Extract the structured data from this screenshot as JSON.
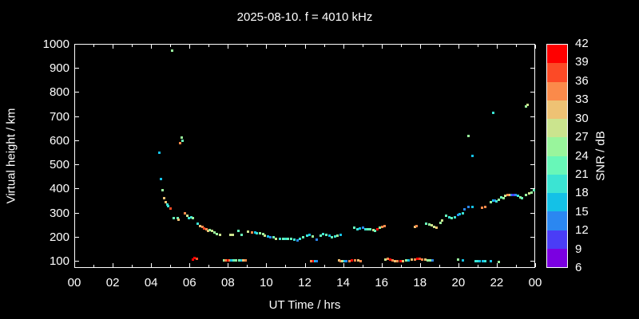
{
  "title": "2025-08-10. f = 4010 kHz",
  "x_axis": {
    "label": "UT Time / hrs",
    "major_tick_labels": [
      "00",
      "02",
      "04",
      "06",
      "08",
      "10",
      "12",
      "14",
      "16",
      "18",
      "20",
      "22",
      "00"
    ],
    "major_tick_hours": [
      0,
      2,
      4,
      6,
      8,
      10,
      12,
      14,
      16,
      18,
      20,
      22,
      24
    ],
    "minor_tick_hours": [
      1,
      3,
      5,
      7,
      9,
      11,
      13,
      15,
      17,
      19,
      21,
      23
    ]
  },
  "y_axis": {
    "label": "Virtual height / km",
    "tick_values": [
      100,
      200,
      300,
      400,
      500,
      600,
      700,
      800,
      900,
      1000
    ]
  },
  "colorbar": {
    "label": "SNR / dB",
    "tick_values": [
      6,
      9,
      12,
      15,
      18,
      21,
      24,
      27,
      30,
      33,
      36,
      39,
      42
    ],
    "colors": [
      "#7b00e1",
      "#4a3df6",
      "#2b87f1",
      "#14c1e7",
      "#3be4d3",
      "#68f7b8",
      "#99f59c",
      "#cbe48e",
      "#eec274",
      "#fb8a4a",
      "#fc4a26",
      "#ff0000"
    ]
  },
  "chart_data": {
    "type": "scatter",
    "title": "2025-08-10. f = 4010 kHz",
    "xlabel": "UT Time / hrs",
    "ylabel": "Virtual height / km",
    "xlim": [
      0,
      24
    ],
    "ylim": [
      70,
      1000
    ],
    "grid": false,
    "marker": "3px square, color-coded by SNR",
    "colorbar_label": "SNR / dB",
    "snr_range_db": [
      6,
      42
    ],
    "snr_step_db": 3,
    "points_format": [
      "ut_hour",
      "virtual_height_km",
      "snr_db"
    ],
    "points": [
      [
        4.42,
        550,
        16
      ],
      [
        4.49,
        442,
        16
      ],
      [
        4.58,
        395,
        25
      ],
      [
        4.67,
        360,
        31
      ],
      [
        4.74,
        344,
        31
      ],
      [
        4.82,
        336,
        19
      ],
      [
        4.88,
        327,
        19
      ],
      [
        5.0,
        318,
        37
      ],
      [
        5.07,
        972,
        25
      ],
      [
        5.15,
        280,
        22
      ],
      [
        5.35,
        278,
        22
      ],
      [
        5.4,
        272,
        31
      ],
      [
        5.48,
        591,
        34
      ],
      [
        5.57,
        612,
        25
      ],
      [
        5.62,
        598,
        22
      ],
      [
        5.72,
        298,
        34
      ],
      [
        5.85,
        289,
        28
      ],
      [
        5.93,
        280,
        19
      ],
      [
        6.06,
        281,
        19
      ],
      [
        6.15,
        280,
        25
      ],
      [
        6.42,
        254,
        19
      ],
      [
        6.55,
        245,
        31
      ],
      [
        6.65,
        241,
        34
      ],
      [
        6.75,
        237,
        37
      ],
      [
        6.85,
        231,
        34
      ],
      [
        6.95,
        227,
        31
      ],
      [
        7.05,
        228,
        25
      ],
      [
        7.16,
        225,
        28
      ],
      [
        7.28,
        219,
        25
      ],
      [
        7.42,
        212,
        25
      ],
      [
        7.56,
        208,
        28
      ],
      [
        8.12,
        210,
        28
      ],
      [
        8.25,
        209,
        28
      ],
      [
        8.54,
        226,
        22
      ],
      [
        8.68,
        209,
        22
      ],
      [
        9.03,
        223,
        28
      ],
      [
        9.23,
        219,
        34
      ],
      [
        9.38,
        219,
        16
      ],
      [
        9.5,
        216,
        19
      ],
      [
        9.65,
        216,
        25
      ],
      [
        9.8,
        212,
        25
      ],
      [
        9.92,
        206,
        28
      ],
      [
        10.07,
        202,
        16
      ],
      [
        10.2,
        200,
        13
      ],
      [
        10.35,
        198,
        22
      ],
      [
        10.5,
        194,
        28
      ],
      [
        10.7,
        191,
        19
      ],
      [
        10.85,
        191,
        22
      ],
      [
        11.0,
        192,
        19
      ],
      [
        11.12,
        194,
        22
      ],
      [
        11.26,
        194,
        22
      ],
      [
        11.45,
        189,
        19
      ],
      [
        11.6,
        187,
        13
      ],
      [
        11.72,
        194,
        19
      ],
      [
        11.88,
        198,
        22
      ],
      [
        12.1,
        206,
        19
      ],
      [
        12.22,
        209,
        16
      ],
      [
        12.4,
        201,
        25
      ],
      [
        12.62,
        189,
        13
      ],
      [
        12.82,
        206,
        22
      ],
      [
        12.95,
        212,
        19
      ],
      [
        13.1,
        209,
        22
      ],
      [
        13.25,
        205,
        16
      ],
      [
        13.4,
        200,
        22
      ],
      [
        13.55,
        203,
        19
      ],
      [
        13.7,
        207,
        25
      ],
      [
        13.85,
        210,
        16
      ],
      [
        14.57,
        238,
        22
      ],
      [
        14.72,
        232,
        19
      ],
      [
        14.85,
        235,
        16
      ],
      [
        15.0,
        240,
        13
      ],
      [
        15.12,
        233,
        19
      ],
      [
        15.25,
        232,
        22
      ],
      [
        15.4,
        233,
        22
      ],
      [
        15.54,
        229,
        28
      ],
      [
        15.65,
        227,
        22
      ],
      [
        15.75,
        232,
        40
      ],
      [
        15.88,
        238,
        25
      ],
      [
        16.0,
        243,
        34
      ],
      [
        16.15,
        246,
        34
      ],
      [
        17.7,
        243,
        31
      ],
      [
        17.82,
        246,
        34
      ],
      [
        18.3,
        254,
        22
      ],
      [
        18.45,
        251,
        25
      ],
      [
        18.58,
        248,
        28
      ],
      [
        18.72,
        243,
        28
      ],
      [
        18.85,
        240,
        31
      ],
      [
        19.05,
        260,
        25
      ],
      [
        19.15,
        269,
        28
      ],
      [
        19.35,
        289,
        22
      ],
      [
        19.5,
        282,
        19
      ],
      [
        19.65,
        280,
        22
      ],
      [
        19.8,
        283,
        19
      ],
      [
        19.95,
        291,
        13
      ],
      [
        20.05,
        294,
        16
      ],
      [
        20.2,
        297,
        19
      ],
      [
        20.3,
        316,
        13
      ],
      [
        20.5,
        324,
        13
      ],
      [
        20.72,
        326,
        16
      ],
      [
        21.2,
        320,
        34
      ],
      [
        21.4,
        326,
        34
      ],
      [
        21.65,
        345,
        25
      ],
      [
        21.8,
        350,
        16
      ],
      [
        21.88,
        352,
        13
      ],
      [
        21.95,
        348,
        19
      ],
      [
        22.1,
        356,
        25
      ],
      [
        22.2,
        364,
        22
      ],
      [
        22.32,
        362,
        25
      ],
      [
        22.42,
        371,
        28
      ],
      [
        22.55,
        373,
        34
      ],
      [
        22.65,
        373,
        31
      ],
      [
        22.75,
        373,
        13
      ],
      [
        22.85,
        373,
        10
      ],
      [
        22.97,
        373,
        13
      ],
      [
        23.1,
        371,
        19
      ],
      [
        23.2,
        364,
        25
      ],
      [
        23.3,
        362,
        22
      ],
      [
        23.5,
        375,
        25
      ],
      [
        23.65,
        382,
        28
      ],
      [
        23.8,
        386,
        25
      ],
      [
        23.9,
        393,
        22
      ],
      [
        20.5,
        620,
        25
      ],
      [
        20.72,
        538,
        16
      ],
      [
        21.8,
        714,
        19
      ],
      [
        23.5,
        742,
        25
      ],
      [
        23.6,
        750,
        28
      ],
      [
        6.15,
        108,
        40
      ],
      [
        6.25,
        112,
        40
      ],
      [
        6.35,
        110,
        37
      ],
      [
        7.78,
        103,
        25
      ],
      [
        7.88,
        102,
        34
      ],
      [
        7.98,
        102,
        40
      ],
      [
        8.07,
        103,
        34
      ],
      [
        8.17,
        102,
        16
      ],
      [
        8.28,
        103,
        22
      ],
      [
        8.42,
        102,
        25
      ],
      [
        8.55,
        103,
        22
      ],
      [
        8.68,
        102,
        16
      ],
      [
        8.78,
        103,
        31
      ],
      [
        8.9,
        102,
        34
      ],
      [
        12.3,
        100,
        34
      ],
      [
        12.42,
        99,
        40
      ],
      [
        12.52,
        100,
        16
      ],
      [
        12.62,
        99,
        13
      ],
      [
        13.75,
        102,
        31
      ],
      [
        13.85,
        101,
        34
      ],
      [
        13.95,
        100,
        28
      ],
      [
        14.05,
        100,
        16
      ],
      [
        14.15,
        100,
        13
      ],
      [
        14.3,
        101,
        34
      ],
      [
        14.45,
        102,
        40
      ],
      [
        14.6,
        103,
        34
      ],
      [
        14.75,
        102,
        31
      ],
      [
        14.9,
        101,
        34
      ],
      [
        16.2,
        108,
        28
      ],
      [
        16.32,
        110,
        34
      ],
      [
        16.42,
        108,
        40
      ],
      [
        16.55,
        104,
        34
      ],
      [
        16.68,
        101,
        31
      ],
      [
        16.8,
        100,
        34
      ],
      [
        16.95,
        99,
        40
      ],
      [
        17.1,
        100,
        31
      ],
      [
        17.25,
        102,
        25
      ],
      [
        17.4,
        103,
        16
      ],
      [
        17.55,
        105,
        31
      ],
      [
        17.7,
        107,
        34
      ],
      [
        17.85,
        109,
        40
      ],
      [
        17.98,
        110,
        37
      ],
      [
        18.1,
        108,
        34
      ],
      [
        18.25,
        105,
        31
      ],
      [
        18.4,
        103,
        25
      ],
      [
        18.52,
        103,
        25
      ],
      [
        18.62,
        103,
        13
      ],
      [
        19.95,
        107,
        25
      ],
      [
        20.22,
        104,
        16
      ],
      [
        20.9,
        100,
        19
      ],
      [
        21.0,
        100,
        19
      ],
      [
        21.1,
        100,
        16
      ],
      [
        21.25,
        100,
        16
      ],
      [
        21.4,
        100,
        19
      ],
      [
        21.65,
        100,
        16
      ],
      [
        22.1,
        96,
        25
      ]
    ]
  }
}
